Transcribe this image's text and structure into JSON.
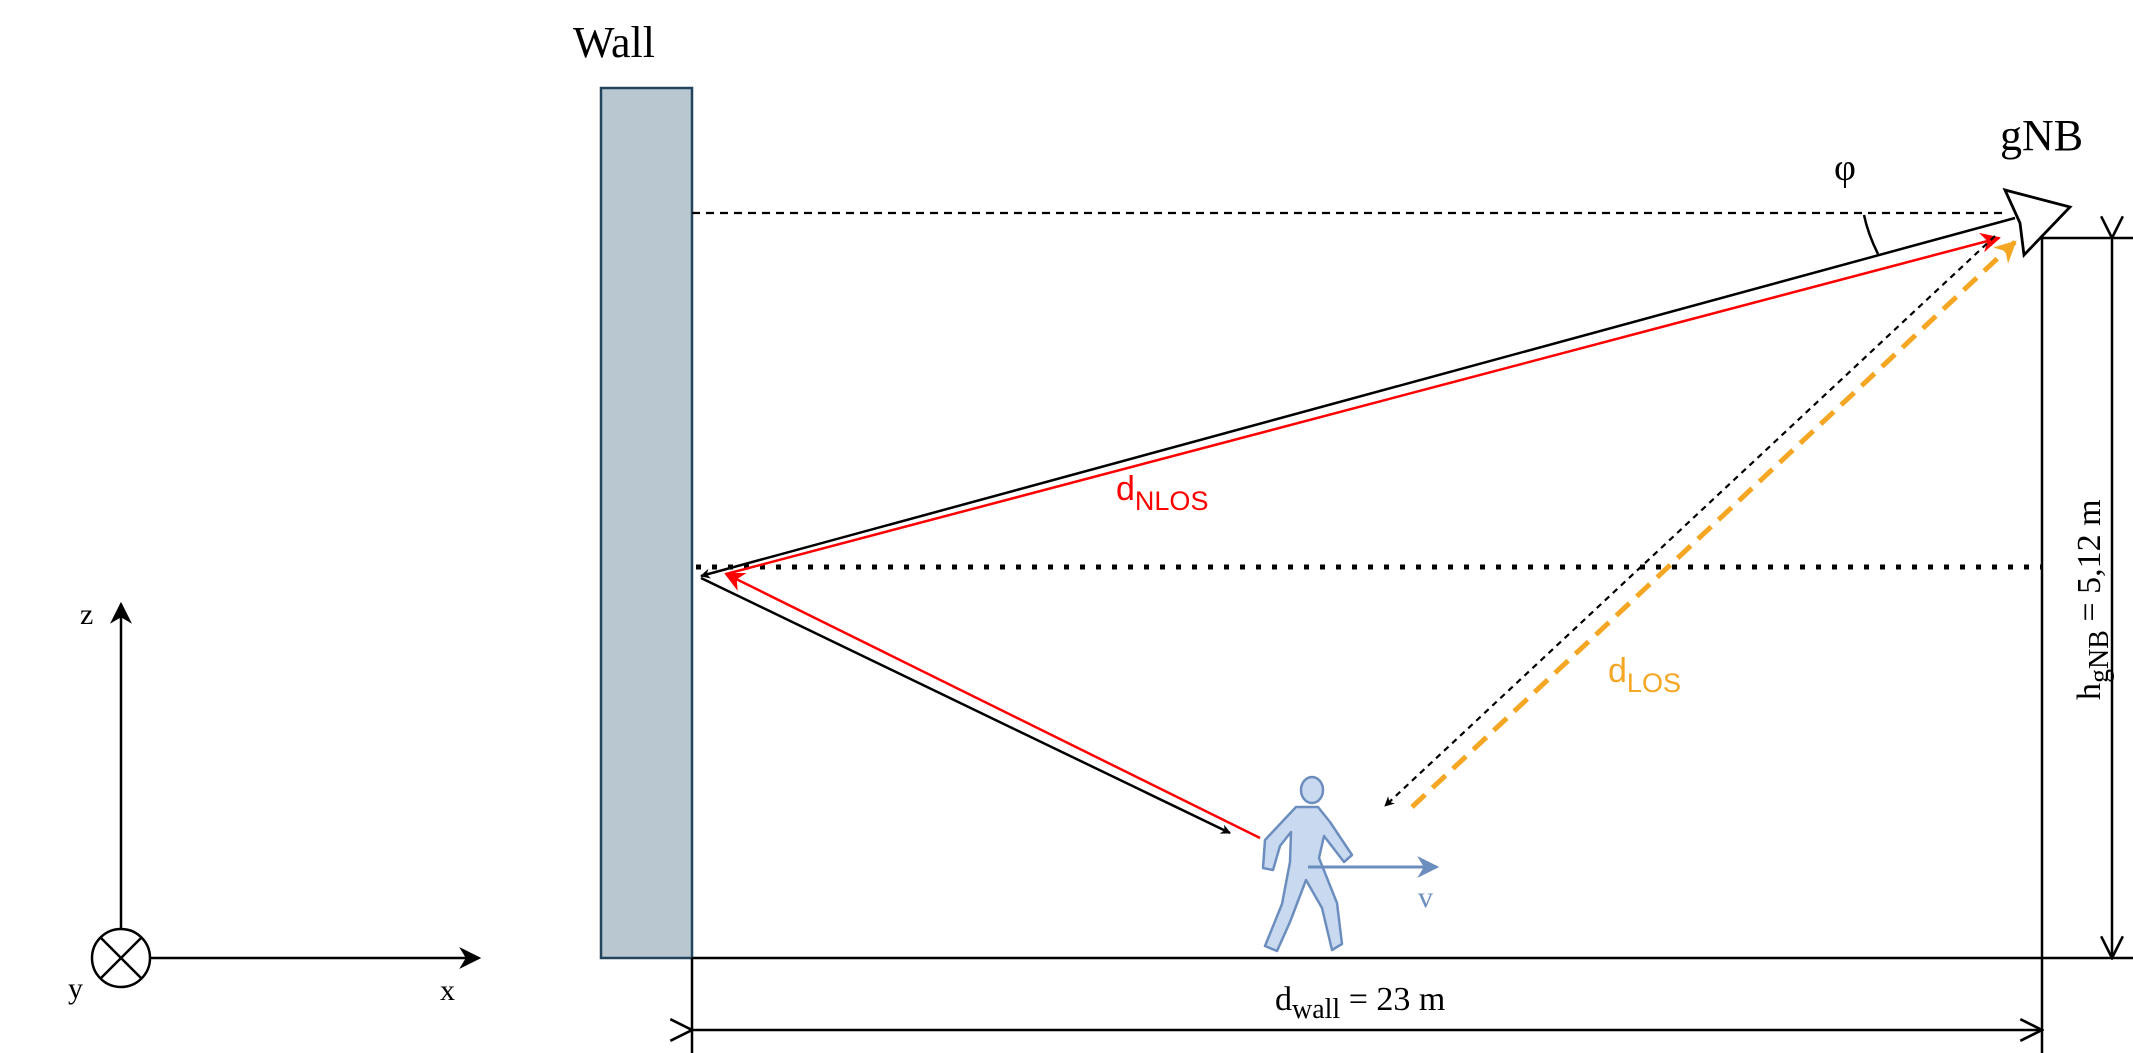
{
  "labels": {
    "wall": "Wall",
    "gnb": "gNB",
    "phi": "φ",
    "d_nlos_main": "d",
    "d_nlos_sub": "NLOS",
    "d_los_main": "d",
    "d_los_sub": "LOS",
    "velocity": "v",
    "d_wall_main": "d",
    "d_wall_sub": "wall",
    "d_wall_value": " = 23 m",
    "h_gnb_main": "h",
    "h_gnb_sub": "gNB",
    "h_gnb_value": " = 5,12 m"
  },
  "axes": {
    "x": "x",
    "y": "y",
    "z": "z"
  },
  "colors": {
    "nlos": "#ff0000",
    "los": "#f5a623",
    "wall_fill": "#b9c7d1",
    "wall_stroke": "#23445d",
    "person_fill": "#c9d9f0",
    "person_stroke": "#6c8ebf",
    "line": "#000000"
  },
  "icons": [
    "wall-block",
    "gnb-antenna-icon",
    "pedestrian-icon",
    "axis-into-page-icon"
  ]
}
